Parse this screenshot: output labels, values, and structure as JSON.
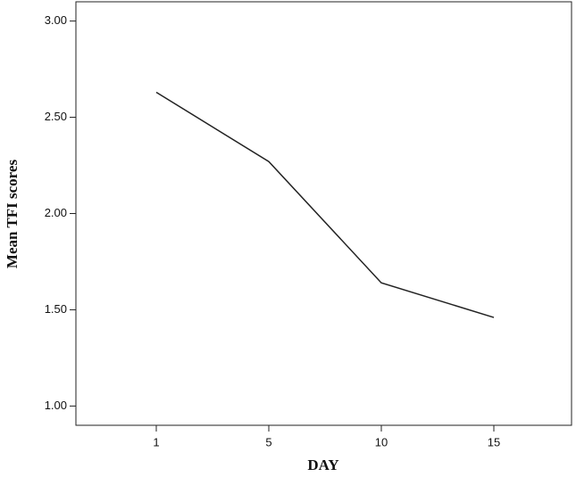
{
  "chart_data": {
    "type": "line",
    "x_label": "DAY",
    "y_label": "Mean TFI scores",
    "categories": [
      "1",
      "5",
      "10",
      "15"
    ],
    "values": [
      2.63,
      2.27,
      1.64,
      1.46
    ],
    "color": "#222222",
    "ylim": [
      0.9,
      3.1
    ],
    "yticks": [
      {
        "value": 1,
        "label": "1.00"
      },
      {
        "value": 1.5,
        "label": "1.50"
      },
      {
        "value": 2,
        "label": "2.00"
      },
      {
        "value": 2.5,
        "label": "2.50"
      },
      {
        "value": 3,
        "label": "3.00"
      }
    ]
  }
}
